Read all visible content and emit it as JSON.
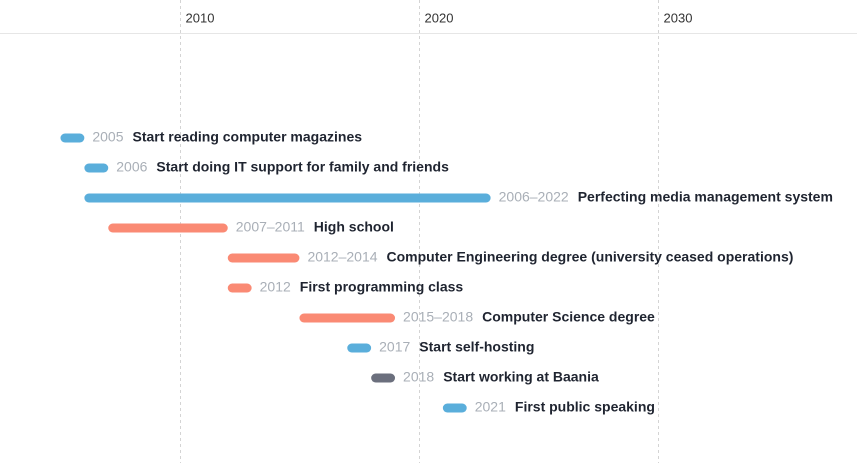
{
  "chart_data": {
    "type": "timeline",
    "xlim": [
      2002.47,
      2038.33
    ],
    "xticks": [
      2010,
      2020,
      2030
    ],
    "grid": true,
    "events": [
      {
        "start": 2005,
        "end": 2005,
        "label": "2005",
        "name": "Start reading computer magazines",
        "color": "#5aaedb"
      },
      {
        "start": 2006,
        "end": 2006,
        "label": "2006",
        "name": "Start doing IT support for family and friends",
        "color": "#5aaedb"
      },
      {
        "start": 2006,
        "end": 2022,
        "label": "2006–2022",
        "name": "Perfecting media management system",
        "color": "#5aaedb"
      },
      {
        "start": 2007,
        "end": 2011,
        "label": "2007–2011",
        "name": "High school",
        "color": "#fa8a74"
      },
      {
        "start": 2012,
        "end": 2014,
        "label": "2012–2014",
        "name": "Computer Engineering degree (university ceased operations)",
        "color": "#fa8a74"
      },
      {
        "start": 2012,
        "end": 2012,
        "label": "2012",
        "name": "First programming class",
        "color": "#fa8a74"
      },
      {
        "start": 2015,
        "end": 2018,
        "label": "2015–2018",
        "name": "Computer Science degree",
        "color": "#fa8a74"
      },
      {
        "start": 2017,
        "end": 2017,
        "label": "2017",
        "name": "Start self-hosting",
        "color": "#5aaedb"
      },
      {
        "start": 2018,
        "end": 2018,
        "label": "2018",
        "name": "Start working at Baania",
        "color": "#6b6f7d"
      },
      {
        "start": 2021,
        "end": 2021,
        "label": "2021",
        "name": "First public speaking",
        "color": "#5aaedb"
      }
    ]
  }
}
